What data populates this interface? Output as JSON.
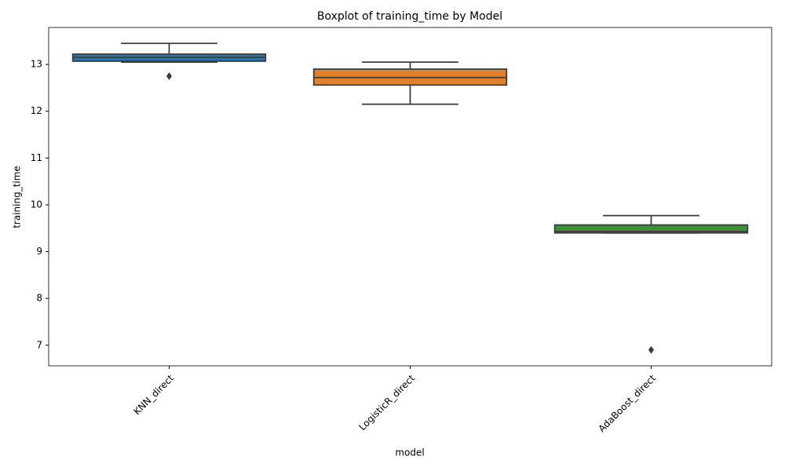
{
  "chart_data": {
    "type": "box",
    "title": "Boxplot of training_time by Model",
    "x_label": "model",
    "y_label": "training_time",
    "categories": [
      "KNN_direct",
      "LogisticR_direct",
      "AdaBoost_direct"
    ],
    "colors": [
      "#3274a1",
      "#e1812c",
      "#3a923a"
    ],
    "boxes": [
      {
        "whisker_low": 13.05,
        "q1": 13.07,
        "median": 13.15,
        "q3": 13.22,
        "whisker_high": 13.45,
        "outliers": [
          12.75
        ]
      },
      {
        "whisker_low": 12.15,
        "q1": 12.56,
        "median": 12.72,
        "q3": 12.9,
        "whisker_high": 13.05,
        "outliers": []
      },
      {
        "whisker_low": 9.4,
        "q1": 9.4,
        "median": 9.43,
        "q3": 9.57,
        "whisker_high": 9.77,
        "outliers": [
          6.9
        ]
      }
    ],
    "ylim": [
      6.56,
      13.79
    ],
    "yticks": [
      7,
      8,
      9,
      10,
      11,
      12,
      13
    ],
    "grid": false
  }
}
